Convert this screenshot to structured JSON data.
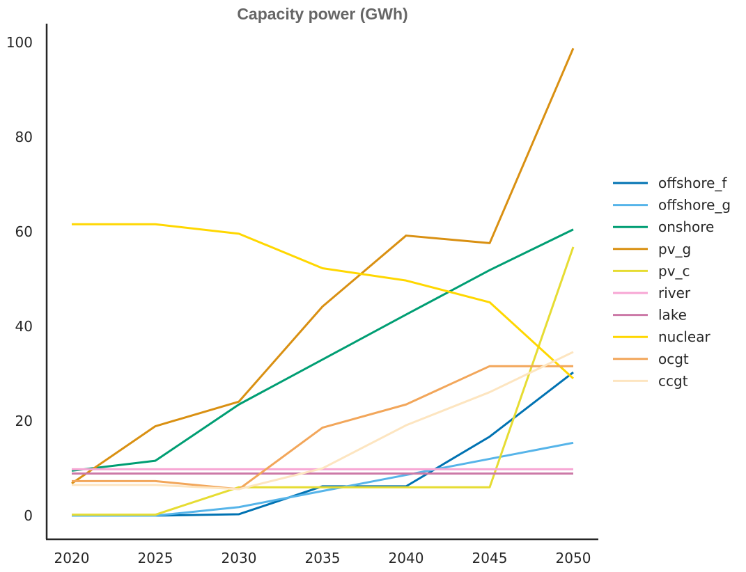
{
  "chart_data": {
    "type": "line",
    "title": "Capacity power (GWh)",
    "xlabel": "",
    "ylabel": "",
    "x": [
      2020,
      2025,
      2030,
      2035,
      2040,
      2045,
      2050
    ],
    "x_ticks": [
      "2020",
      "2025",
      "2030",
      "2035",
      "2040",
      "2045",
      "2050"
    ],
    "y_ticks": [
      "0",
      "20",
      "40",
      "60",
      "80",
      "100"
    ],
    "xlim": [
      2018.5,
      2051.5
    ],
    "ylim": [
      -5,
      104
    ],
    "grid": false,
    "legend_position": "center-right",
    "series": [
      {
        "name": "offshore_f",
        "color": "#0072b2",
        "values": [
          0,
          0,
          0.3,
          6.2,
          6.2,
          16.7,
          30.3
        ]
      },
      {
        "name": "offshore_g",
        "color": "#56b4e9",
        "values": [
          0,
          0,
          1.8,
          5.2,
          8.6,
          12.0,
          15.4
        ]
      },
      {
        "name": "onshore",
        "color": "#009e73",
        "values": [
          9.5,
          11.6,
          23.5,
          33.0,
          42.5,
          51.9,
          60.5
        ]
      },
      {
        "name": "pv_g",
        "color": "#d99012",
        "values": [
          6.8,
          18.9,
          24.1,
          44.2,
          59.2,
          57.6,
          98.8
        ]
      },
      {
        "name": "pv_c",
        "color": "#e6dc32",
        "values": [
          0.2,
          0.2,
          6.0,
          6.0,
          6.0,
          6.0,
          56.8
        ]
      },
      {
        "name": "river",
        "color": "#f7a6d4",
        "values": [
          9.8,
          9.8,
          9.8,
          9.8,
          9.8,
          9.8,
          9.8
        ]
      },
      {
        "name": "lake",
        "color": "#cc79a7",
        "values": [
          8.9,
          8.9,
          8.9,
          8.9,
          8.9,
          8.9,
          8.9
        ]
      },
      {
        "name": "nuclear",
        "color": "#ffd700",
        "values": [
          61.6,
          61.6,
          59.6,
          52.3,
          49.7,
          45.1,
          29.0
        ]
      },
      {
        "name": "ocgt",
        "color": "#f2a65a",
        "values": [
          7.3,
          7.3,
          5.6,
          18.6,
          23.5,
          31.6,
          31.6
        ]
      },
      {
        "name": "ccgt",
        "color": "#fde5c0",
        "values": [
          6.5,
          6.5,
          5.6,
          10.0,
          19.1,
          26.1,
          34.6
        ]
      }
    ]
  }
}
